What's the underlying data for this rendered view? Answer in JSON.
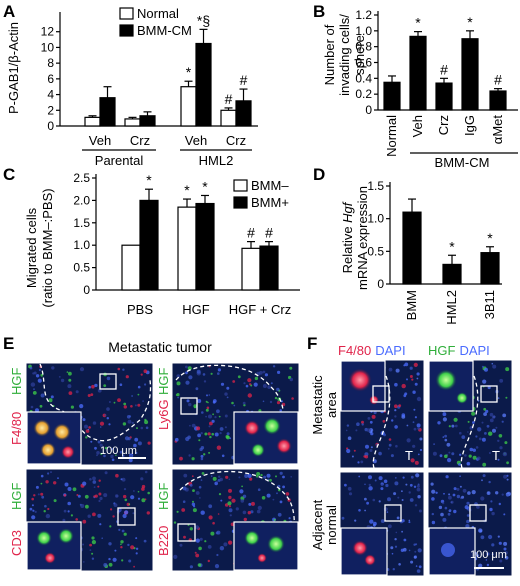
{
  "panel_letters": [
    "A",
    "B",
    "C",
    "D",
    "E",
    "F"
  ],
  "colors": {
    "black_bar": "#000000",
    "white_bar": "#ffffff",
    "tissue": "#0b1a4a",
    "red": "#e0234a",
    "green": "#3fd14a",
    "blue": "#4b6cff"
  },
  "chart_data": [
    {
      "panel": "A",
      "type": "bar",
      "ylabel": "P-GAB1/β-Actin",
      "ylim": [
        0,
        14
      ],
      "yticks": [
        "0",
        "2",
        "4",
        "6",
        "8",
        "10",
        "12"
      ],
      "categories": [
        "Veh",
        "Crz",
        "Veh",
        "Crz"
      ],
      "groups": [
        {
          "label": "Parental",
          "span": [
            0,
            1
          ]
        },
        {
          "label": "HML2",
          "span": [
            2,
            3
          ]
        }
      ],
      "series": [
        {
          "name": "Normal",
          "values": [
            1.1,
            0.9,
            5.0,
            2.0
          ],
          "errors": [
            0.2,
            0.2,
            0.7,
            0.3
          ],
          "marks": [
            "",
            "",
            "*",
            "#"
          ]
        },
        {
          "name": "BMM-CM",
          "values": [
            3.6,
            1.3,
            10.5,
            3.2
          ],
          "errors": [
            1.4,
            0.5,
            1.8,
            1.5
          ],
          "marks": [
            "",
            "",
            "*§",
            "#"
          ]
        }
      ]
    },
    {
      "panel": "B",
      "type": "bar",
      "ylabel": "Number of invading cells/ sphere",
      "ylim": [
        0,
        1.2
      ],
      "yticks": [
        "0",
        "0.2",
        "0.4",
        "0.6",
        "0.8",
        "1.0",
        "1.2"
      ],
      "categories": [
        "Normal",
        "Veh",
        "Crz",
        "IgG",
        "αMet"
      ],
      "group_label": "BMM-CM",
      "values": [
        0.35,
        0.93,
        0.34,
        0.9,
        0.24
      ],
      "errors": [
        0.08,
        0.06,
        0.06,
        0.1,
        0.03
      ],
      "marks": [
        "",
        "*",
        "#",
        "*",
        "#"
      ]
    },
    {
      "panel": "C",
      "type": "bar",
      "ylabel": "Migrated cells (ratio to BMM–:PBS)",
      "ylim": [
        0,
        2.5
      ],
      "yticks": [
        "0",
        "0.5",
        "1.0",
        "1.5",
        "2.0",
        "2.5"
      ],
      "categories": [
        "PBS",
        "HGF",
        "HGF + Crz"
      ],
      "series": [
        {
          "name": "BMM–",
          "values": [
            1.0,
            1.85,
            0.93
          ],
          "errors": [
            0,
            0.18,
            0.15
          ],
          "marks": [
            "",
            "*",
            "#"
          ]
        },
        {
          "name": "BMM+",
          "values": [
            2.0,
            1.93,
            0.98
          ],
          "errors": [
            0.25,
            0.18,
            0.1
          ],
          "marks": [
            "*",
            "*",
            "#"
          ]
        }
      ]
    },
    {
      "panel": "D",
      "type": "bar",
      "ylabel_parts": [
        "Relative ",
        "Hgf",
        "mRNA expression"
      ],
      "ylim": [
        0,
        1.5
      ],
      "yticks": [
        "0",
        "0.5",
        "1.0",
        "1.5"
      ],
      "categories": [
        "BMM",
        "HML2",
        "3B11"
      ],
      "values": [
        1.1,
        0.3,
        0.48
      ],
      "errors": [
        0.2,
        0.14,
        0.09
      ],
      "marks": [
        "",
        "*",
        "*"
      ]
    }
  ],
  "panel_e": {
    "title": "Metastatic tumor",
    "scale_bar": "100 μm",
    "tiles": [
      {
        "stain": "F4/80",
        "stain_color": "red",
        "marker": "HGF"
      },
      {
        "stain": "Ly6G",
        "stain_color": "red",
        "marker": "HGF"
      },
      {
        "stain": "CD3",
        "stain_color": "red",
        "marker": "HGF"
      },
      {
        "stain": "B220",
        "stain_color": "red",
        "marker": "HGF"
      }
    ]
  },
  "panel_f": {
    "col_labels": [
      {
        "stain": "F4/80",
        "counter": "DAPI"
      },
      {
        "stain": "HGF",
        "counter": "DAPI"
      }
    ],
    "row_labels": [
      "Metastatic area",
      "Adjacent normal"
    ],
    "tumor_mark": "T",
    "scale_bar": "100 μm"
  }
}
